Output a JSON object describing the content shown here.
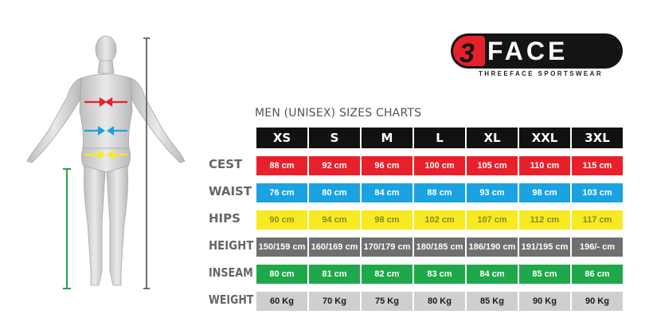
{
  "brand": {
    "logo_digit": "3",
    "logo_word": "FACE",
    "tagline": "THREEFACE SPORTSWEAR"
  },
  "chart_data": {
    "type": "table",
    "title": "MEN (UNISEX) SIZES CHARTS",
    "sizes": [
      "XS",
      "S",
      "M",
      "L",
      "XL",
      "XXL",
      "3XL"
    ],
    "rows": [
      {
        "label": "CEST",
        "color": "#e8202c",
        "text_color": "#ffffff",
        "values": [
          "88 cm",
          "92 cm",
          "96 cm",
          "100 cm",
          "105 cm",
          "110 cm",
          "115 cm"
        ]
      },
      {
        "label": "WAIST",
        "color": "#1aa3e0",
        "text_color": "#ffffff",
        "values": [
          "76 cm",
          "80 cm",
          "84 cm",
          "88 cm",
          "93 cm",
          "98 cm",
          "103 cm"
        ]
      },
      {
        "label": "HIPS",
        "color": "#f7ea21",
        "text_color": "#8a8a2a",
        "values": [
          "90 cm",
          "94 cm",
          "98 cm",
          "102 cm",
          "107 cm",
          "112 cm",
          "117 cm"
        ]
      },
      {
        "label": "HEIGHT",
        "color": "#6f6f6f",
        "text_color": "#ffffff",
        "values": [
          "150/159 cm",
          "160/169 cm",
          "170/179 cm",
          "180/185 cm",
          "186/190 cm",
          "191/195 cm",
          "196/- cm"
        ]
      },
      {
        "label": "INSEAM",
        "color": "#1ea84a",
        "text_color": "#ffffff",
        "values": [
          "80 cm",
          "81 cm",
          "82 cm",
          "83 cm",
          "84 cm",
          "85 cm",
          "86 cm"
        ]
      },
      {
        "label": "WEIGHT",
        "color": "#cfcfcf",
        "text_color": "#1a1a1a",
        "values": [
          "60 Kg",
          "70 Kg",
          "75 Kg",
          "80 Kg",
          "85 Kg",
          "90 Kg",
          "90 Kg"
        ]
      }
    ]
  },
  "figure": {
    "arrow_colors": {
      "chest": "#e8202c",
      "waist": "#1aa3e0",
      "hips": "#f7ea21",
      "height": "#6f6f6f",
      "inseam": "#1ea84a"
    }
  }
}
